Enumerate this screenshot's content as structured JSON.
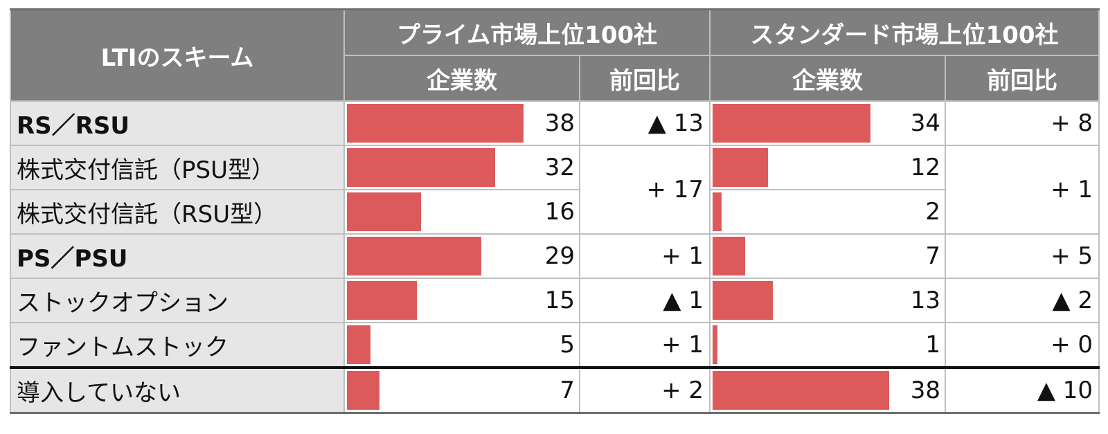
{
  "header": {
    "scheme": "LTIのスキーム",
    "prime_group": "プライム市場上位100社",
    "standard_group": "スタンダード市場上位100社",
    "count_label": "企業数",
    "change_label": "前回比"
  },
  "colors": {
    "bar": "#dc5a5c",
    "header_bg": "#7f7f7f",
    "label_bg": "#e6e6e6"
  },
  "chart_data": {
    "type": "table",
    "bar_scale_max": 50,
    "rows": [
      {
        "label": "RS／RSU",
        "bold": true,
        "prime": 38,
        "standard": 34
      },
      {
        "label": "株式交付信託（PSU型）",
        "prime": 32,
        "standard": 12
      },
      {
        "label": "株式交付信託（RSU型）",
        "prime": 16,
        "standard": 2
      },
      {
        "label": "PS／PSU",
        "bold": true,
        "prime": 29,
        "standard": 7
      },
      {
        "label": "ストックオプション",
        "prime": 15,
        "standard": 13
      },
      {
        "label": "ファントムストック",
        "prime": 5,
        "standard": 1
      },
      {
        "label": "導入していない",
        "prime": 7,
        "standard": 38
      }
    ],
    "changes": {
      "prime": [
        "▲ 13",
        "+ 17",
        "+ 1",
        "▲ 1",
        "+ 1",
        "+ 2"
      ],
      "standard": [
        "+ 8",
        "+ 1",
        "+ 5",
        "▲ 2",
        "+ 0",
        "▲ 10"
      ]
    }
  }
}
